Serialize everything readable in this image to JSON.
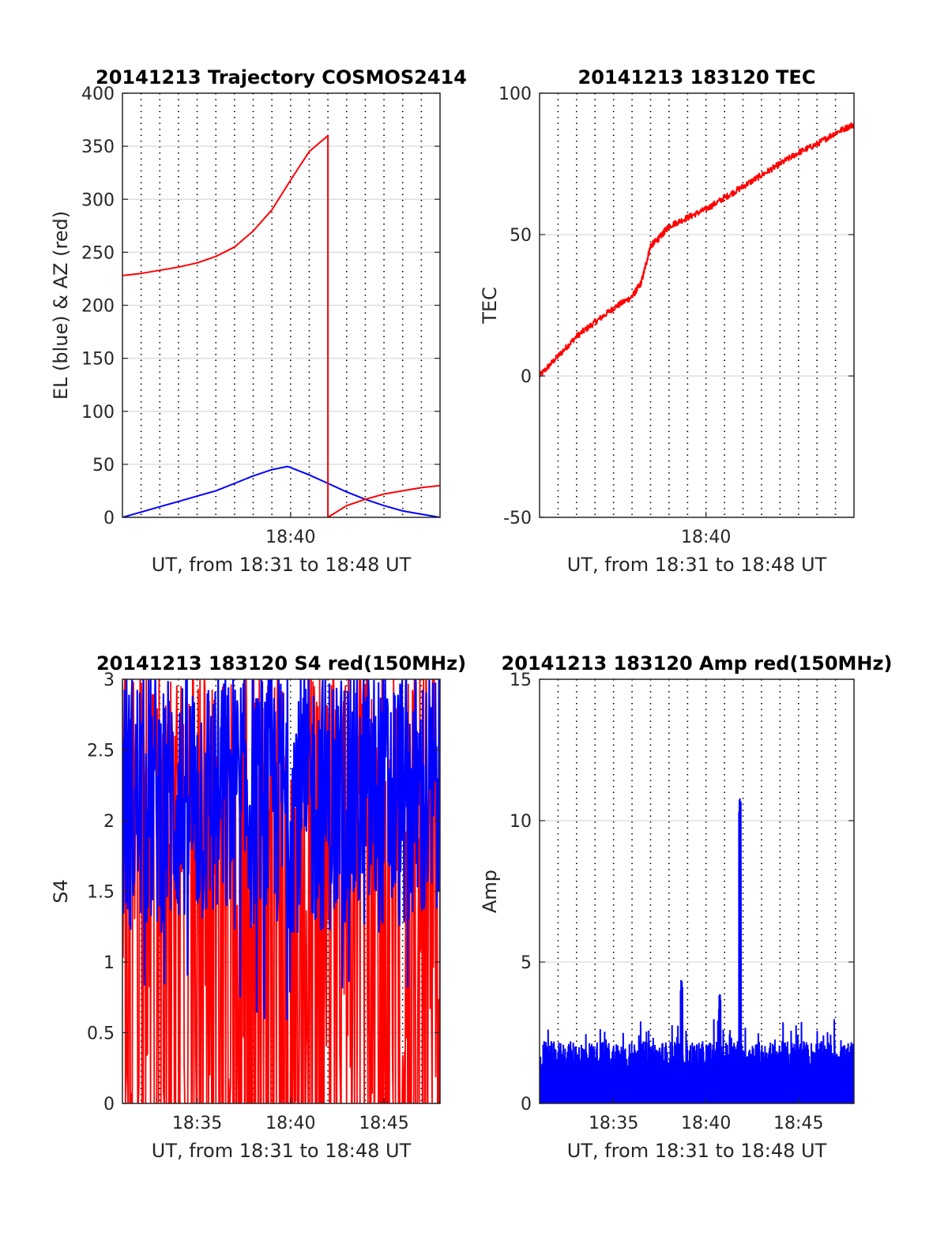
{
  "chart_data": [
    {
      "type": "line",
      "title": "20141213 Trajectory COSMOS2414",
      "xlabel": "UT, from 18:31 to 18:48 UT",
      "ylabel": "EL (blue) & AZ (red)",
      "xlim": [
        "18:31",
        "18:48"
      ],
      "ylim": [
        0,
        400
      ],
      "yticks": [
        "0",
        "50",
        "100",
        "150",
        "200",
        "250",
        "300",
        "350",
        "400"
      ],
      "xtick_labels": [
        {
          "x": "18:40",
          "label": "18:40"
        }
      ],
      "grid": true,
      "series": [
        {
          "color": "#0000ff",
          "x": [
            "18:31",
            "18:32",
            "18:33",
            "18:34",
            "18:35",
            "18:36",
            "18:37",
            "18:38",
            "18:39",
            "18:39:50",
            "18:40",
            "18:41",
            "18:42",
            "18:43",
            "18:44",
            "18:45",
            "18:46",
            "18:47",
            "18:48"
          ],
          "y": [
            0,
            5,
            10,
            15,
            20,
            25,
            32,
            39,
            45,
            48,
            47,
            40,
            32,
            24,
            17,
            11,
            6,
            3,
            0
          ]
        },
        {
          "color": "#ff0000",
          "x": [
            "18:31",
            "18:32",
            "18:33",
            "18:34",
            "18:35",
            "18:36",
            "18:37",
            "18:38",
            "18:39",
            "18:40",
            "18:41",
            "18:42",
            "18:42",
            "18:43",
            "18:44",
            "18:45",
            "18:46",
            "18:47",
            "18:48"
          ],
          "y": [
            228,
            230,
            233,
            236,
            240,
            246,
            255,
            270,
            290,
            318,
            345,
            360,
            0,
            11,
            17,
            22,
            25,
            28,
            30
          ]
        }
      ]
    },
    {
      "type": "line",
      "title": "20141213 183120 TEC",
      "xlabel": "UT, from 18:31 to 18:48 UT",
      "ylabel": "TEC",
      "xlim": [
        "18:31",
        "18:48"
      ],
      "ylim": [
        -50,
        100
      ],
      "yticks": [
        "-50",
        "0",
        "50",
        "100"
      ],
      "xtick_labels": [
        {
          "x": "18:40",
          "label": "18:40"
        }
      ],
      "grid": true,
      "series": [
        {
          "color": "#ff0000",
          "x": [
            "18:31",
            "18:32",
            "18:33",
            "18:34",
            "18:35",
            "18:36",
            "18:36:30",
            "18:37",
            "18:37:30",
            "18:38",
            "18:39",
            "18:40",
            "18:41",
            "18:42",
            "18:43",
            "18:44",
            "18:45",
            "18:46",
            "18:47",
            "18:48"
          ],
          "y": [
            0,
            7,
            14,
            19,
            24,
            28,
            33,
            46,
            49,
            53,
            56,
            59,
            63,
            67,
            71,
            75,
            79,
            82,
            86,
            89
          ]
        }
      ]
    },
    {
      "type": "line",
      "title": "20141213 183120 S4 red(150MHz)",
      "xlabel": "UT, from 18:31 to 18:48 UT",
      "ylabel": "S4",
      "xlim": [
        "18:31",
        "18:48"
      ],
      "ylim": [
        0,
        3
      ],
      "yticks": [
        "0",
        "0.5",
        "1",
        "1.5",
        "2",
        "2.5",
        "3"
      ],
      "xtick_labels": [
        {
          "x": "18:35",
          "label": "18:35"
        },
        {
          "x": "18:40",
          "label": "18:40"
        },
        {
          "x": "18:45",
          "label": "18:45"
        }
      ],
      "grid": true,
      "series": [
        {
          "color": "#ff0000",
          "description": "dense noise filling 0 to 3",
          "range": [
            0,
            3
          ]
        },
        {
          "color": "#0000ff",
          "description": "dense noise between about 1 and 3, occasional dips to 0.5",
          "range": [
            0.5,
            3
          ]
        }
      ]
    },
    {
      "type": "line",
      "title": "20141213 183120 Amp red(150MHz)",
      "xlabel": "UT, from 18:31 to 18:48 UT",
      "ylabel": "Amp",
      "xlim": [
        "18:31",
        "18:48"
      ],
      "ylim": [
        0,
        15
      ],
      "yticks": [
        "0",
        "5",
        "10",
        "15"
      ],
      "xtick_labels": [
        {
          "x": "18:35",
          "label": "18:35"
        },
        {
          "x": "18:40",
          "label": "18:40"
        },
        {
          "x": "18:45",
          "label": "18:45"
        }
      ],
      "grid": true,
      "series": [
        {
          "color": "#0000ff",
          "baseline_range": [
            0,
            2.5
          ],
          "peaks": [
            {
              "x": "18:38:40",
              "y": 4.4
            },
            {
              "x": "18:40:45",
              "y": 3.9
            },
            {
              "x": "18:41:50",
              "y": 10.8
            }
          ]
        }
      ]
    }
  ]
}
